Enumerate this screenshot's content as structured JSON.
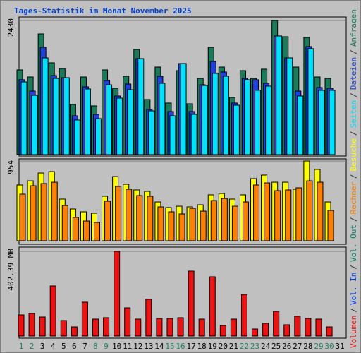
{
  "title": "Tages-Statistik im Monat November 2025",
  "legend_separator": "/",
  "legend_only": [
    {
      "name": "Vol. In",
      "color": "#0040ff"
    },
    {
      "name": "Vol. Out",
      "color": "#00806a"
    }
  ],
  "chart_data": [
    {
      "type": "bar",
      "ylim": [
        0,
        2430
      ],
      "yticks": [
        2430
      ],
      "series": [
        {
          "name": "Anfragen",
          "color": "#1a7a5a",
          "values": [
            1535,
            1407,
            2187,
            1663,
            1560,
            908,
            1407,
            883,
            1535,
            1202,
            1420,
            1906,
            998,
            1586,
            934,
            1522,
            921,
            1381,
            1944,
            1586,
            1036,
            1522,
            1381,
            1548,
            2430,
            2136,
            1586,
            2123,
            1407,
            1381,
            null
          ]
        },
        {
          "name": "Dateien",
          "color": "#1f3fe0",
          "values": [
            1356,
            1151,
            1944,
            1432,
            1394,
            703,
            1228,
            729,
            1343,
            1062,
            1279,
            1739,
            819,
            1420,
            780,
            1650,
            780,
            1266,
            1688,
            1497,
            934,
            1381,
            1356,
            1292,
            2149,
            1752,
            1151,
            1957,
            1215,
            1202,
            null
          ]
        },
        {
          "name": "Seiten",
          "color": "#00e0ff",
          "values": [
            1317,
            1074,
            1752,
            1381,
            1394,
            627,
            1190,
            652,
            1266,
            1023,
            1177,
            1739,
            793,
            1292,
            703,
            1650,
            729,
            1253,
            1471,
            1420,
            895,
            1356,
            1164,
            1241,
            2149,
            1752,
            1062,
            1919,
            1164,
            1164,
            null
          ]
        }
      ]
    },
    {
      "type": "bar",
      "ylim": [
        0,
        954
      ],
      "yticks": [
        954
      ],
      "series": [
        {
          "name": "Besuche",
          "color": "#ffff00",
          "values": [
            667,
            717,
            810,
            827,
            498,
            380,
            346,
            329,
            532,
            768,
            675,
            608,
            591,
            464,
            397,
            413,
            405,
            430,
            549,
            565,
            498,
            549,
            743,
            785,
            700,
            700,
            616,
            954,
            853,
            464,
            null
          ]
        },
        {
          "name": "Rechner",
          "color": "#ff8000",
          "values": [
            557,
            658,
            684,
            700,
            422,
            279,
            236,
            219,
            473,
            650,
            616,
            540,
            532,
            405,
            346,
            321,
            388,
            354,
            481,
            506,
            413,
            464,
            667,
            692,
            599,
            608,
            633,
            717,
            700,
            363,
            null
          ]
        }
      ]
    },
    {
      "type": "bar",
      "ylim": [
        0,
        402.39
      ],
      "yticks": [
        {
          "value": 402.39,
          "label": "402.39 MB"
        }
      ],
      "categories": [
        "1",
        "2",
        "3",
        "4",
        "5",
        "6",
        "7",
        "8",
        "9",
        "10",
        "11",
        "12",
        "13",
        "14",
        "15",
        "16",
        "17",
        "18",
        "19",
        "20",
        "21",
        "22",
        "23",
        "24",
        "25",
        "26",
        "27",
        "28",
        "29",
        "30",
        "31"
      ],
      "category_colors": [
        "#208060",
        "#208060",
        "#000",
        "#000",
        "#000",
        "#000",
        "#000",
        "#208060",
        "#208060",
        "#000",
        "#000",
        "#000",
        "#000",
        "#000",
        "#208060",
        "#208060",
        "#000",
        "#000",
        "#000",
        "#000",
        "#000",
        "#208060",
        "#208060",
        "#000",
        "#000",
        "#000",
        "#000",
        "#000",
        "#208060",
        "#208060",
        "#000"
      ],
      "series": [
        {
          "name": "Volumen",
          "color": "#ee1111",
          "values": [
            100.6,
            107.3,
            90.5,
            238.1,
            73.8,
            43.6,
            161,
            80.5,
            87.2,
            402.39,
            134.1,
            80.5,
            174.4,
            83.8,
            83.8,
            87.2,
            308.5,
            80.5,
            281.7,
            50.3,
            80.5,
            197.8,
            33.5,
            60.4,
            117.4,
            53.7,
            93.9,
            83.8,
            80.5,
            43.6,
            null
          ]
        }
      ]
    }
  ]
}
